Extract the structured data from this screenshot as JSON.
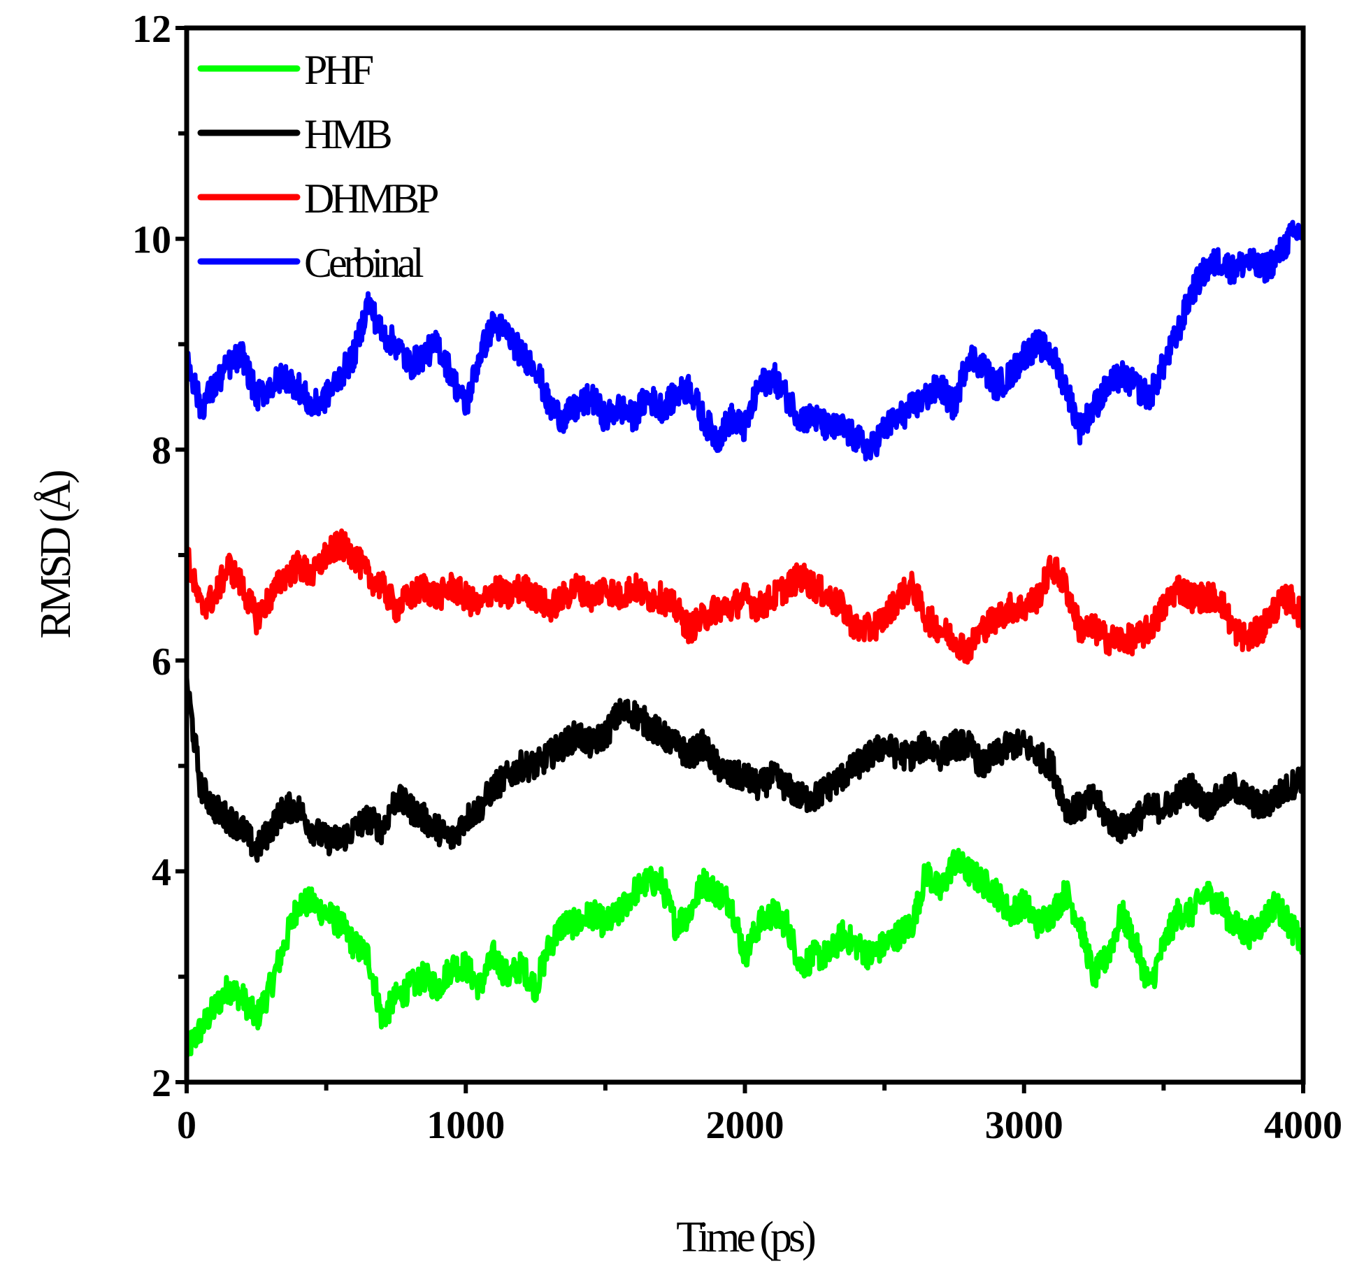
{
  "chart_data": {
    "type": "line",
    "xlabel": "Time (ps)",
    "ylabel": "RMSD (Å)",
    "xlim": [
      0,
      4000
    ],
    "ylim": [
      2,
      12
    ],
    "xticks": [
      0,
      1000,
      2000,
      3000,
      4000
    ],
    "yticks": [
      2,
      4,
      6,
      8,
      10,
      12
    ],
    "grid": false,
    "legend": "top-left",
    "series": [
      {
        "name": "PHF",
        "color": "#00ff00",
        "x": [
          0,
          50,
          100,
          150,
          200,
          250,
          300,
          350,
          400,
          450,
          500,
          550,
          600,
          650,
          700,
          750,
          800,
          850,
          900,
          950,
          1000,
          1050,
          1100,
          1150,
          1200,
          1250,
          1300,
          1350,
          1400,
          1450,
          1500,
          1550,
          1600,
          1650,
          1700,
          1750,
          1800,
          1850,
          1900,
          1950,
          2000,
          2050,
          2100,
          2150,
          2200,
          2250,
          2300,
          2350,
          2400,
          2450,
          2500,
          2550,
          2600,
          2650,
          2700,
          2750,
          2800,
          2850,
          2900,
          2950,
          3000,
          3050,
          3100,
          3150,
          3200,
          3250,
          3300,
          3350,
          3400,
          3450,
          3500,
          3550,
          3600,
          3650,
          3700,
          3750,
          3800,
          3850,
          3900,
          3950,
          4000
        ],
        "values": [
          2.3,
          2.5,
          2.7,
          2.9,
          2.8,
          2.6,
          2.9,
          3.3,
          3.7,
          3.7,
          3.6,
          3.5,
          3.3,
          3.2,
          2.6,
          2.8,
          2.9,
          3.0,
          2.9,
          3.1,
          3.1,
          2.9,
          3.2,
          3.0,
          3.1,
          2.9,
          3.3,
          3.5,
          3.5,
          3.6,
          3.5,
          3.6,
          3.8,
          3.9,
          3.9,
          3.5,
          3.6,
          3.9,
          3.8,
          3.7,
          3.2,
          3.5,
          3.6,
          3.5,
          3.1,
          3.2,
          3.2,
          3.4,
          3.3,
          3.2,
          3.3,
          3.4,
          3.5,
          4.0,
          3.8,
          4.1,
          4.0,
          3.9,
          3.8,
          3.6,
          3.7,
          3.5,
          3.6,
          3.8,
          3.5,
          3.0,
          3.2,
          3.6,
          3.3,
          2.9,
          3.3,
          3.6,
          3.6,
          3.8,
          3.7,
          3.5,
          3.4,
          3.5,
          3.7,
          3.5,
          3.3
        ]
      },
      {
        "name": "HMB",
        "color": "#000000",
        "x": [
          0,
          50,
          100,
          150,
          200,
          250,
          300,
          350,
          400,
          450,
          500,
          550,
          600,
          650,
          700,
          750,
          800,
          850,
          900,
          950,
          1000,
          1050,
          1100,
          1150,
          1200,
          1250,
          1300,
          1350,
          1400,
          1450,
          1500,
          1550,
          1600,
          1650,
          1700,
          1750,
          1800,
          1850,
          1900,
          1950,
          2000,
          2050,
          2100,
          2150,
          2200,
          2250,
          2300,
          2350,
          2400,
          2450,
          2500,
          2550,
          2600,
          2650,
          2700,
          2750,
          2800,
          2850,
          2900,
          2950,
          3000,
          3050,
          3100,
          3150,
          3200,
          3250,
          3300,
          3350,
          3400,
          3450,
          3500,
          3550,
          3600,
          3650,
          3700,
          3750,
          3800,
          3850,
          3900,
          3950,
          4000
        ],
        "values": [
          5.8,
          4.8,
          4.6,
          4.5,
          4.4,
          4.2,
          4.4,
          4.6,
          4.6,
          4.4,
          4.3,
          4.3,
          4.4,
          4.5,
          4.4,
          4.7,
          4.6,
          4.5,
          4.4,
          4.3,
          4.5,
          4.6,
          4.8,
          4.9,
          5.0,
          5.0,
          5.1,
          5.2,
          5.3,
          5.2,
          5.3,
          5.5,
          5.5,
          5.4,
          5.3,
          5.2,
          5.1,
          5.2,
          5.0,
          4.9,
          4.9,
          4.8,
          4.9,
          4.8,
          4.7,
          4.7,
          4.8,
          4.9,
          5.0,
          5.1,
          5.2,
          5.1,
          5.1,
          5.2,
          5.1,
          5.2,
          5.2,
          5.0,
          5.1,
          5.2,
          5.2,
          5.1,
          5.0,
          4.6,
          4.6,
          4.7,
          4.5,
          4.4,
          4.5,
          4.6,
          4.6,
          4.7,
          4.8,
          4.6,
          4.7,
          4.8,
          4.7,
          4.6,
          4.7,
          4.8,
          4.9
        ]
      },
      {
        "name": "DHMBP",
        "color": "#ff0000",
        "x": [
          0,
          50,
          100,
          150,
          200,
          250,
          300,
          350,
          400,
          450,
          500,
          550,
          600,
          650,
          700,
          750,
          800,
          850,
          900,
          950,
          1000,
          1050,
          1100,
          1150,
          1200,
          1250,
          1300,
          1350,
          1400,
          1450,
          1500,
          1550,
          1600,
          1650,
          1700,
          1750,
          1800,
          1850,
          1900,
          1950,
          2000,
          2050,
          2100,
          2150,
          2200,
          2250,
          2300,
          2350,
          2400,
          2450,
          2500,
          2550,
          2600,
          2650,
          2700,
          2750,
          2800,
          2850,
          2900,
          2950,
          3000,
          3050,
          3100,
          3150,
          3200,
          3250,
          3300,
          3350,
          3400,
          3450,
          3500,
          3550,
          3600,
          3650,
          3700,
          3750,
          3800,
          3850,
          3900,
          3950,
          4000
        ],
        "values": [
          7.0,
          6.5,
          6.6,
          6.9,
          6.7,
          6.4,
          6.6,
          6.8,
          6.9,
          6.8,
          7.0,
          7.1,
          7.0,
          6.8,
          6.7,
          6.5,
          6.6,
          6.7,
          6.6,
          6.7,
          6.6,
          6.5,
          6.7,
          6.6,
          6.7,
          6.6,
          6.5,
          6.6,
          6.7,
          6.6,
          6.7,
          6.6,
          6.7,
          6.6,
          6.6,
          6.5,
          6.3,
          6.4,
          6.5,
          6.5,
          6.6,
          6.5,
          6.6,
          6.7,
          6.8,
          6.7,
          6.6,
          6.5,
          6.3,
          6.3,
          6.4,
          6.6,
          6.7,
          6.4,
          6.3,
          6.2,
          6.1,
          6.3,
          6.4,
          6.5,
          6.5,
          6.6,
          6.9,
          6.7,
          6.3,
          6.3,
          6.2,
          6.2,
          6.2,
          6.3,
          6.5,
          6.7,
          6.6,
          6.6,
          6.6,
          6.3,
          6.2,
          6.3,
          6.5,
          6.6,
          6.4
        ]
      },
      {
        "name": "Cerbinal",
        "color": "#0000ff",
        "x": [
          0,
          50,
          100,
          150,
          200,
          250,
          300,
          350,
          400,
          450,
          500,
          550,
          600,
          650,
          700,
          750,
          800,
          850,
          900,
          950,
          1000,
          1050,
          1100,
          1150,
          1200,
          1250,
          1300,
          1350,
          1400,
          1450,
          1500,
          1550,
          1600,
          1650,
          1700,
          1750,
          1800,
          1850,
          1900,
          1950,
          2000,
          2050,
          2100,
          2150,
          2200,
          2250,
          2300,
          2350,
          2400,
          2450,
          2500,
          2550,
          2600,
          2650,
          2700,
          2750,
          2800,
          2850,
          2900,
          2950,
          3000,
          3050,
          3100,
          3150,
          3200,
          3250,
          3300,
          3350,
          3400,
          3450,
          3500,
          3550,
          3600,
          3650,
          3700,
          3750,
          3800,
          3850,
          3900,
          3950,
          4000
        ],
        "values": [
          8.9,
          8.4,
          8.6,
          8.8,
          8.9,
          8.5,
          8.6,
          8.7,
          8.6,
          8.4,
          8.5,
          8.7,
          8.9,
          9.4,
          9.1,
          9.0,
          8.8,
          8.9,
          9.0,
          8.7,
          8.4,
          8.9,
          9.2,
          9.1,
          8.9,
          8.8,
          8.4,
          8.3,
          8.4,
          8.5,
          8.3,
          8.4,
          8.3,
          8.5,
          8.4,
          8.5,
          8.6,
          8.3,
          8.1,
          8.3,
          8.2,
          8.6,
          8.7,
          8.5,
          8.3,
          8.3,
          8.2,
          8.2,
          8.1,
          8.0,
          8.2,
          8.3,
          8.4,
          8.5,
          8.6,
          8.4,
          8.9,
          8.8,
          8.6,
          8.7,
          8.9,
          9.0,
          8.9,
          8.6,
          8.2,
          8.4,
          8.6,
          8.7,
          8.6,
          8.5,
          8.8,
          9.1,
          9.5,
          9.7,
          9.8,
          9.7,
          9.8,
          9.7,
          9.8,
          10.0,
          10.1
        ]
      }
    ]
  }
}
